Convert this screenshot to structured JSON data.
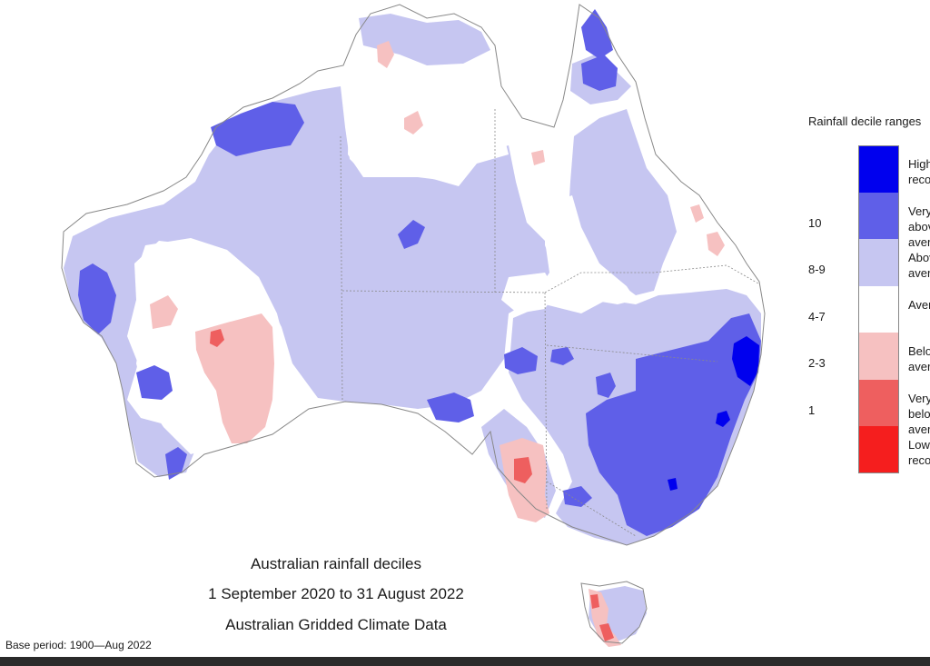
{
  "caption": {
    "title": "Australian rainfall deciles",
    "period": "1 September 2020 to 31 August 2022",
    "source": "Australian Gridded Climate Data"
  },
  "base_period": "Base period: 1900—Aug 2022",
  "legend": {
    "title": "Rainfall decile ranges",
    "items": [
      {
        "range": "",
        "label": "Highest on record",
        "color": "#0000ee"
      },
      {
        "range": "10",
        "label": "Very much above average",
        "color": "#5f5fe8"
      },
      {
        "range": "8-9",
        "label": "Above average",
        "color": "#c6c6f1"
      },
      {
        "range": "4-7",
        "label": "Average",
        "color": "#ffffff"
      },
      {
        "range": "2-3",
        "label": "Below average",
        "color": "#f6c1c1"
      },
      {
        "range": "1",
        "label": "Very much below average",
        "color": "#ee5f5f"
      },
      {
        "range": "",
        "label": "Lowest on record",
        "color": "#f51e1e"
      }
    ]
  },
  "map_colors": {
    "outline": "#888888",
    "border": "#8a8a8a",
    "highest": "#0000ee",
    "very_much_above": "#5f5fe8",
    "above": "#c6c6f1",
    "average": "#ffffff",
    "below": "#f6c1c1",
    "very_much_below": "#ee5f5f"
  }
}
